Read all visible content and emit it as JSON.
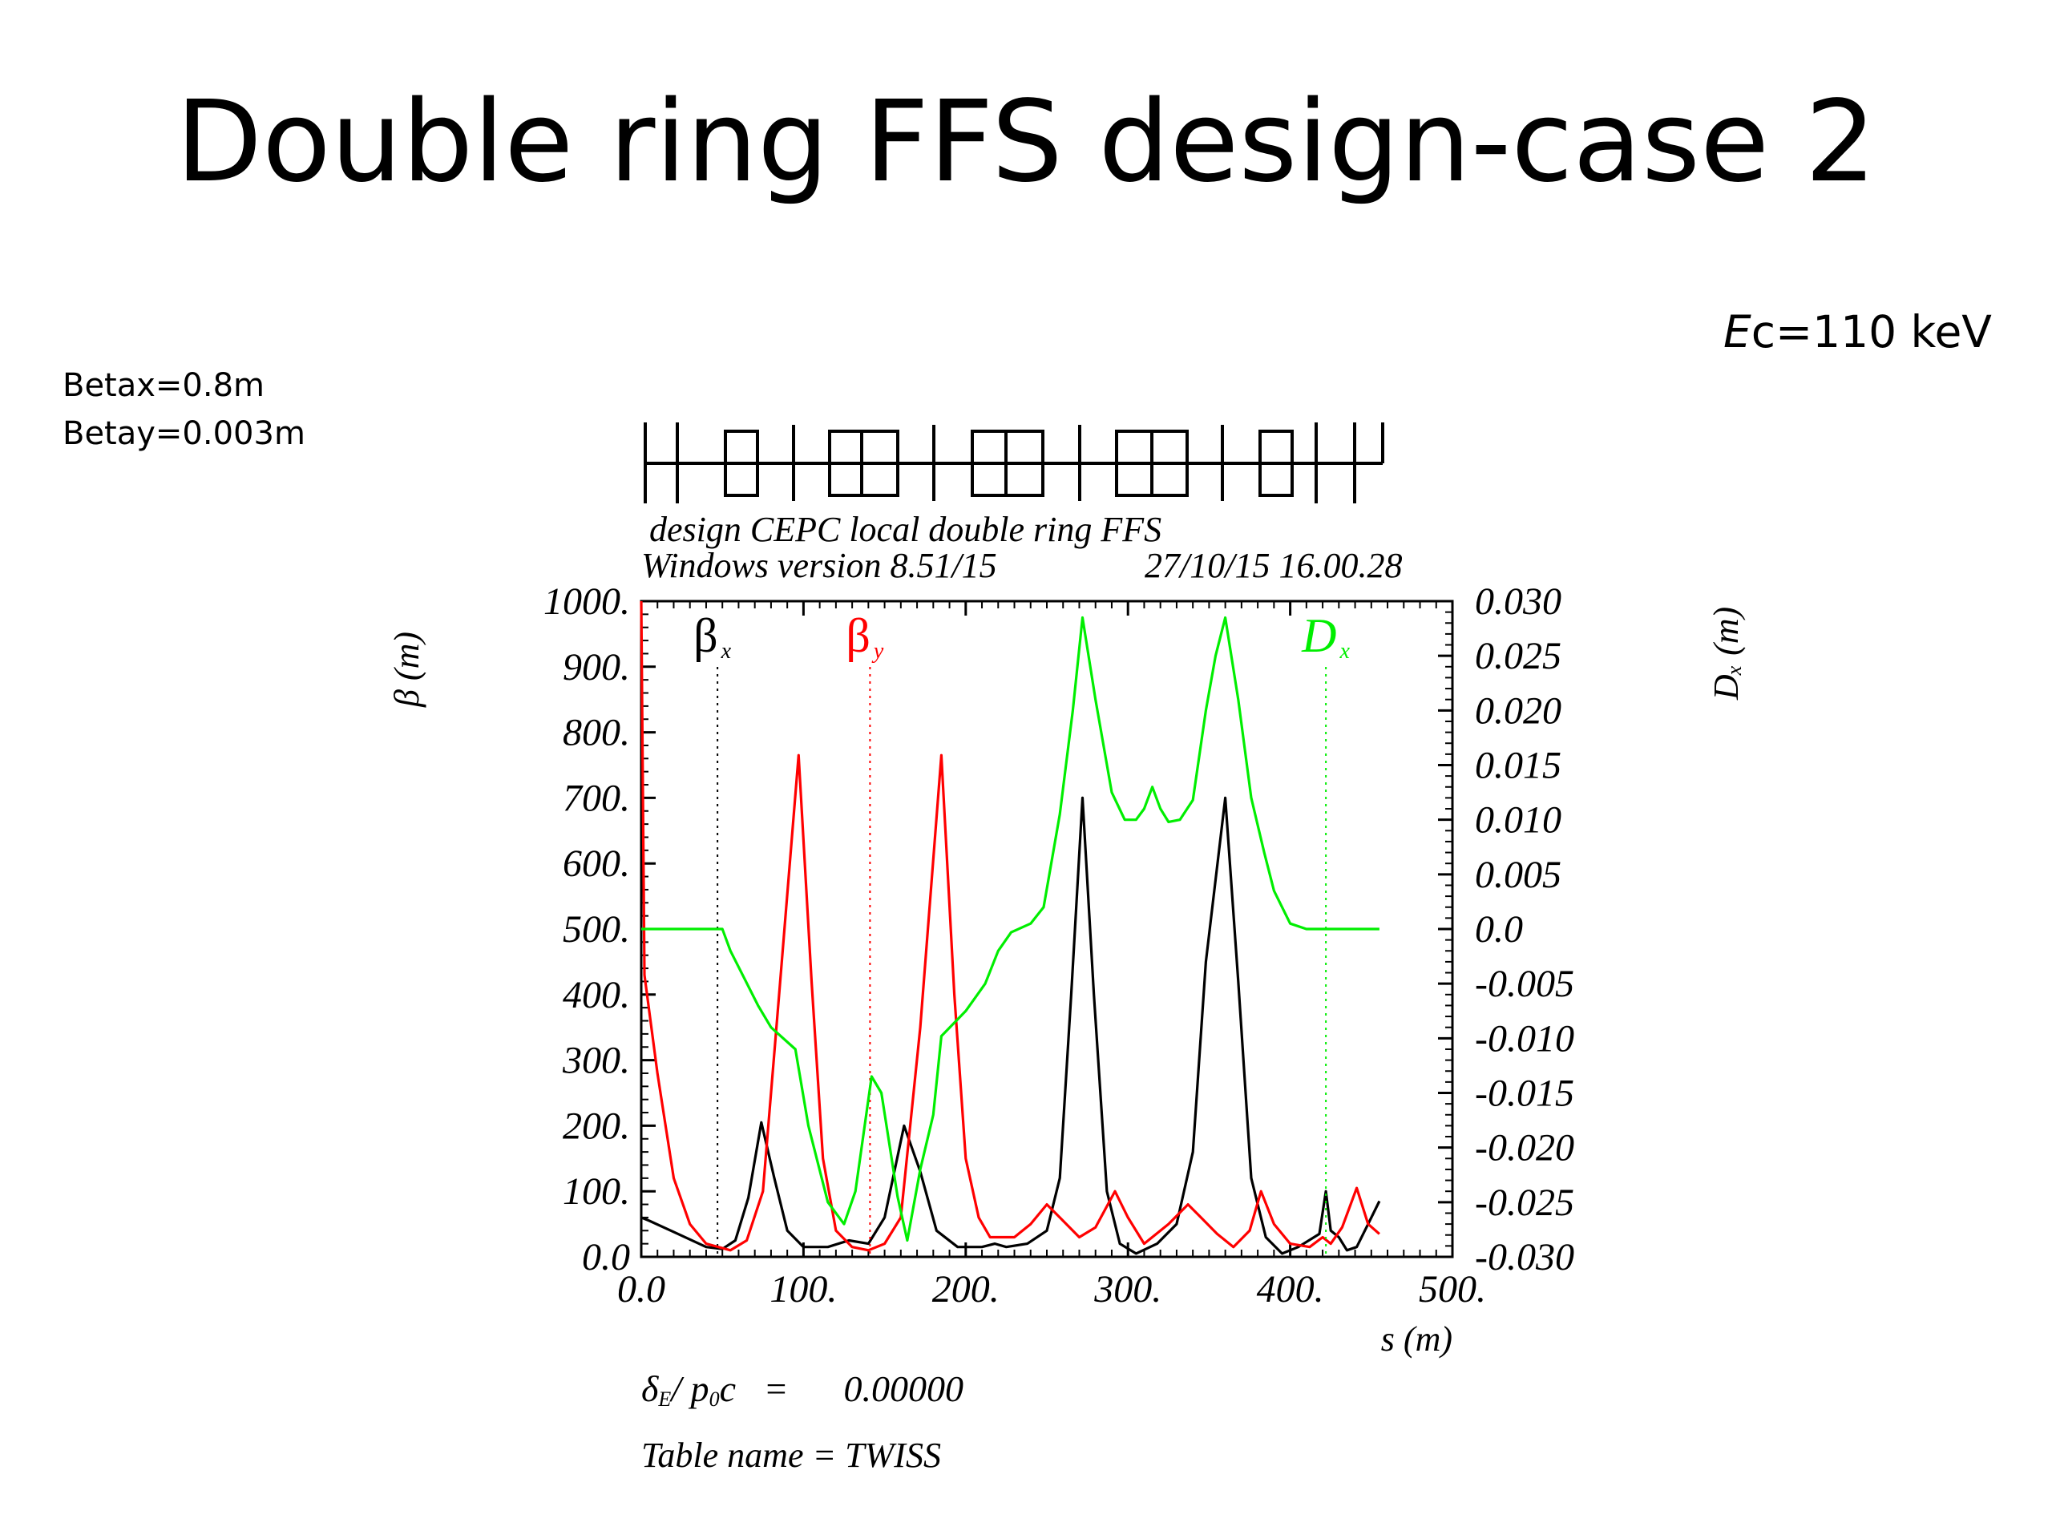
{
  "slide": {
    "title": "Double ring FFS design-case 2",
    "energy": {
      "label_italic": "E",
      "label_rest": "c=110 keV"
    },
    "beta_x_note": "Betax=0.8m",
    "beta_y_note": "Betay=0.003m"
  },
  "chart_data": {
    "type": "line",
    "header_line1": "design CEPC local double ring FFS",
    "header_line2_left": "Windows version 8.51/15",
    "header_line2_right": "27/10/15  16.00.28",
    "xlabel": "s (m)",
    "ylabel_left": "β  (m)",
    "ylabel_right": "Dₓ (m)",
    "xlim": [
      0,
      500
    ],
    "ylim_left": [
      0,
      1000
    ],
    "ylim_right": [
      -0.03,
      0.03
    ],
    "x_ticks": [
      "0.0",
      "100.",
      "200.",
      "300.",
      "400.",
      "500."
    ],
    "y_left_ticks": [
      "0.0",
      "100.",
      "200.",
      "300.",
      "400.",
      "500.",
      "600.",
      "700.",
      "800.",
      "900.",
      "1000."
    ],
    "y_right_ticks": [
      "-0.030",
      "-0.025",
      "-0.020",
      "-0.015",
      "-0.010",
      "-0.005",
      "0.0",
      "0.005",
      "0.010",
      "0.015",
      "0.020",
      "0.025",
      "0.030"
    ],
    "footer_line1": {
      "symbol": "δ",
      "sub": "E",
      "mid": "/ p",
      "sub2": "0",
      "rest": "c   =      0.00000"
    },
    "footer_line2": "Table name = TWISS",
    "colors": {
      "beta_x": "#000000",
      "beta_y": "#ff0000",
      "dx": "#00ee00"
    },
    "series": [
      {
        "name": "βx",
        "axis": "left",
        "legend_sym": "β",
        "legend_sub": "x",
        "legend_x": 47,
        "points": [
          [
            0,
            60
          ],
          [
            5,
            55
          ],
          [
            20,
            38
          ],
          [
            40,
            15
          ],
          [
            50,
            12
          ],
          [
            58,
            25
          ],
          [
            66,
            90
          ],
          [
            74,
            205
          ],
          [
            82,
            120
          ],
          [
            90,
            40
          ],
          [
            100,
            15
          ],
          [
            115,
            15
          ],
          [
            128,
            25
          ],
          [
            140,
            20
          ],
          [
            150,
            60
          ],
          [
            162,
            200
          ],
          [
            172,
            130
          ],
          [
            182,
            40
          ],
          [
            195,
            15
          ],
          [
            210,
            15
          ],
          [
            218,
            20
          ],
          [
            225,
            15
          ],
          [
            238,
            20
          ],
          [
            250,
            40
          ],
          [
            258,
            120
          ],
          [
            265,
            400
          ],
          [
            272,
            700
          ],
          [
            279,
            400
          ],
          [
            287,
            100
          ],
          [
            295,
            20
          ],
          [
            305,
            5
          ],
          [
            318,
            20
          ],
          [
            330,
            50
          ],
          [
            340,
            160
          ],
          [
            348,
            450
          ],
          [
            360,
            700
          ],
          [
            368,
            420
          ],
          [
            376,
            120
          ],
          [
            385,
            30
          ],
          [
            395,
            5
          ],
          [
            405,
            15
          ],
          [
            418,
            35
          ],
          [
            422,
            100
          ],
          [
            425,
            40
          ],
          [
            430,
            30
          ],
          [
            435,
            10
          ],
          [
            441,
            15
          ],
          [
            448,
            50
          ],
          [
            455,
            85
          ]
        ]
      },
      {
        "name": "βy",
        "axis": "left",
        "legend_sym": "β",
        "legend_sub": "y",
        "legend_x": 141,
        "points": [
          [
            0,
            1000
          ],
          [
            2,
            430
          ],
          [
            10,
            280
          ],
          [
            20,
            120
          ],
          [
            30,
            50
          ],
          [
            40,
            20
          ],
          [
            55,
            10
          ],
          [
            65,
            25
          ],
          [
            75,
            100
          ],
          [
            85,
            400
          ],
          [
            97,
            765
          ],
          [
            105,
            420
          ],
          [
            112,
            150
          ],
          [
            120,
            40
          ],
          [
            130,
            15
          ],
          [
            140,
            10
          ],
          [
            150,
            20
          ],
          [
            160,
            60
          ],
          [
            172,
            350
          ],
          [
            185,
            765
          ],
          [
            193,
            400
          ],
          [
            200,
            150
          ],
          [
            208,
            60
          ],
          [
            215,
            30
          ],
          [
            230,
            30
          ],
          [
            240,
            50
          ],
          [
            250,
            80
          ],
          [
            258,
            60
          ],
          [
            270,
            30
          ],
          [
            280,
            45
          ],
          [
            292,
            100
          ],
          [
            300,
            60
          ],
          [
            310,
            20
          ],
          [
            325,
            50
          ],
          [
            337,
            80
          ],
          [
            345,
            60
          ],
          [
            355,
            35
          ],
          [
            365,
            15
          ],
          [
            375,
            40
          ],
          [
            382,
            100
          ],
          [
            390,
            50
          ],
          [
            400,
            20
          ],
          [
            412,
            15
          ],
          [
            420,
            30
          ],
          [
            425,
            20
          ],
          [
            432,
            45
          ],
          [
            441,
            105
          ],
          [
            448,
            50
          ],
          [
            455,
            35
          ]
        ]
      },
      {
        "name": "Dx",
        "axis": "right",
        "legend_sym": "D",
        "legend_sub": "x",
        "legend_x": 422,
        "points": [
          [
            0,
            0
          ],
          [
            40,
            0
          ],
          [
            50,
            0
          ],
          [
            55,
            -0.002
          ],
          [
            72,
            -0.007
          ],
          [
            80,
            -0.009
          ],
          [
            95,
            -0.011
          ],
          [
            103,
            -0.018
          ],
          [
            115,
            -0.025
          ],
          [
            125,
            -0.027
          ],
          [
            132,
            -0.024
          ],
          [
            142,
            -0.0135
          ],
          [
            148,
            -0.015
          ],
          [
            158,
            -0.0245
          ],
          [
            164,
            -0.0285
          ],
          [
            172,
            -0.022
          ],
          [
            180,
            -0.017
          ],
          [
            185,
            -0.0098
          ],
          [
            200,
            -0.0075
          ],
          [
            212,
            -0.005
          ],
          [
            220,
            -0.002
          ],
          [
            228,
            -0.0003
          ],
          [
            240,
            0.0005
          ],
          [
            248,
            0.002
          ],
          [
            258,
            0.0105
          ],
          [
            266,
            0.02
          ],
          [
            272,
            0.0285
          ],
          [
            280,
            0.021
          ],
          [
            290,
            0.0125
          ],
          [
            298,
            0.01
          ],
          [
            305,
            0.01
          ],
          [
            310,
            0.011
          ],
          [
            315,
            0.013
          ],
          [
            320,
            0.011
          ],
          [
            325,
            0.0098
          ],
          [
            332,
            0.01
          ],
          [
            340,
            0.0118
          ],
          [
            348,
            0.02
          ],
          [
            354,
            0.025
          ],
          [
            360,
            0.0285
          ],
          [
            368,
            0.021
          ],
          [
            376,
            0.012
          ],
          [
            384,
            0.007
          ],
          [
            390,
            0.0035
          ],
          [
            400,
            0.0005
          ],
          [
            410,
            0
          ],
          [
            455,
            0
          ]
        ]
      }
    ]
  }
}
